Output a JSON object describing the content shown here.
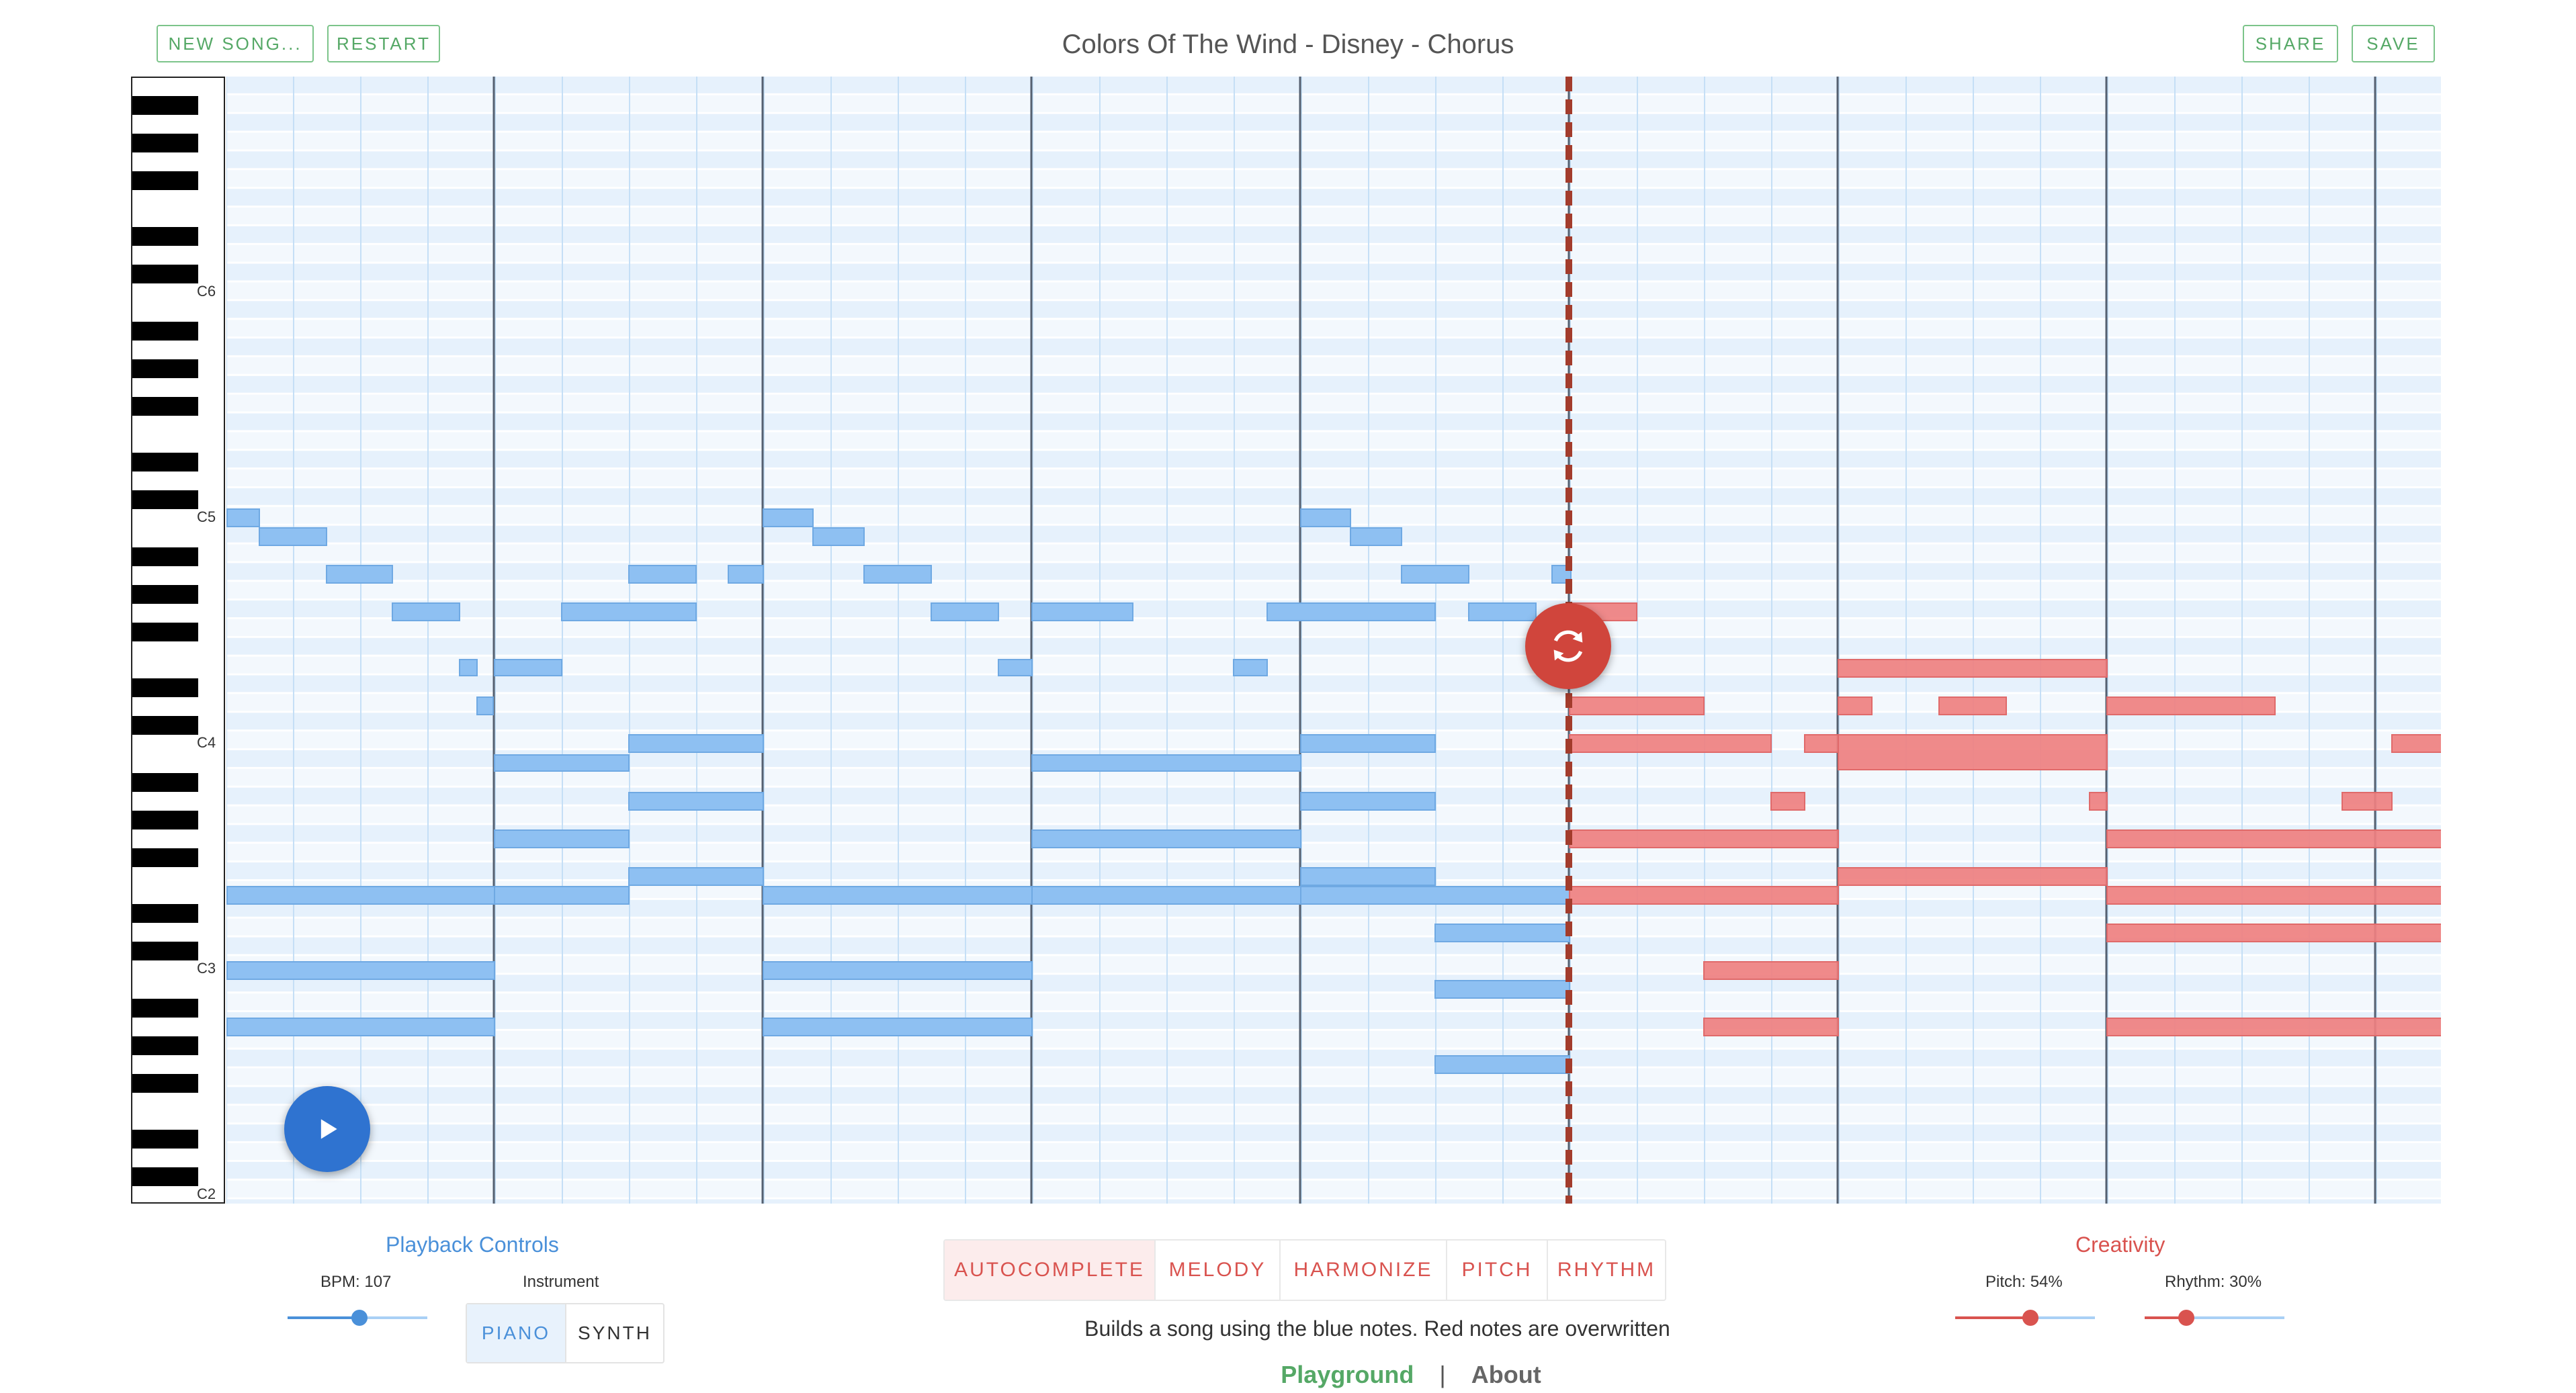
{
  "header": {
    "new_song_label": "NEW SONG...",
    "restart_label": "RESTART",
    "title": "Colors Of The Wind - Disney - Chorus",
    "share_label": "SHARE",
    "save_label": "SAVE"
  },
  "keyboard": {
    "labels": [
      "C6",
      "C5",
      "C4",
      "C3",
      "C2"
    ]
  },
  "playback": {
    "title": "Playback Controls",
    "bpm_label": "BPM: 107",
    "bpm_value": 107,
    "instrument_label": "Instrument",
    "instruments": [
      "PIANO",
      "SYNTH"
    ],
    "selected_instrument": "PIANO"
  },
  "modes": {
    "items": [
      "AUTOCOMPLETE",
      "MELODY",
      "HARMONIZE",
      "PITCH",
      "RHYTHM"
    ],
    "selected": "AUTOCOMPLETE",
    "description": "Builds a song using the blue notes. Red notes are overwritten"
  },
  "creativity": {
    "title": "Creativity",
    "pitch_label": "Pitch: 54%",
    "pitch_value": 54,
    "rhythm_label": "Rhythm: 30%",
    "rhythm_value": 30
  },
  "footer": {
    "playground": "Playground",
    "separator": "|",
    "about": "About"
  },
  "colors": {
    "accent_green": "#55a866",
    "blue_note": "#8ec0f2",
    "red_note": "#ef8080",
    "play_blue": "#2f73d0",
    "refresh_red": "#d0453c",
    "playback_blue": "#4a90d9",
    "creativity_red": "#d9534f"
  },
  "icons": {
    "play": "play-icon",
    "refresh": "refresh-icon"
  }
}
